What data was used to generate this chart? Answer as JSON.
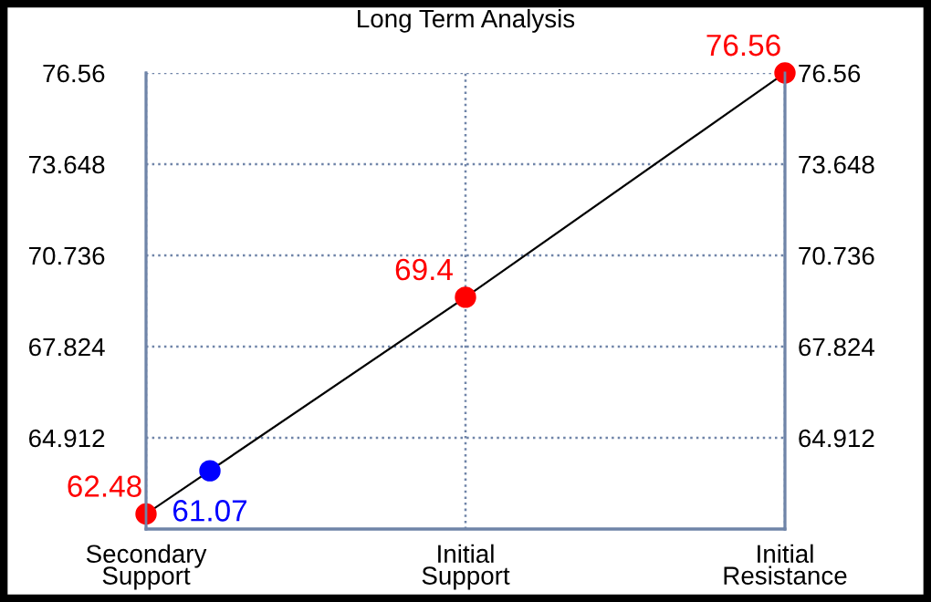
{
  "chart_data": {
    "type": "line",
    "title": "Long Term Analysis",
    "categories": [
      "Secondary\nSupport",
      "Initial\nSupport",
      "Initial\nResistance"
    ],
    "series": [
      {
        "color": "#000000",
        "values": [
          62.48,
          69.4,
          76.56
        ],
        "marker": "none"
      },
      {
        "type": "scatter",
        "color": "#ff0000",
        "values": [
          62.48,
          69.4,
          76.56
        ],
        "marker": "circle",
        "data_labels": true
      },
      {
        "type": "scatter",
        "color": "#0000ff",
        "values": [
          63.86,
          null,
          null
        ],
        "marker": "circle"
      }
    ],
    "annotations": [
      {
        "text": "61.07",
        "x": "Secondary\nSupport",
        "y": 62.05
      }
    ],
    "ylim": [
      62,
      76.56
    ],
    "yticks": [
      64.912,
      67.824,
      70.736,
      73.648,
      76.56
    ],
    "y2lim": [
      62,
      76.56
    ],
    "y2ticks": [
      64.912,
      67.824,
      70.736,
      73.648,
      76.56
    ],
    "grid": true
  }
}
